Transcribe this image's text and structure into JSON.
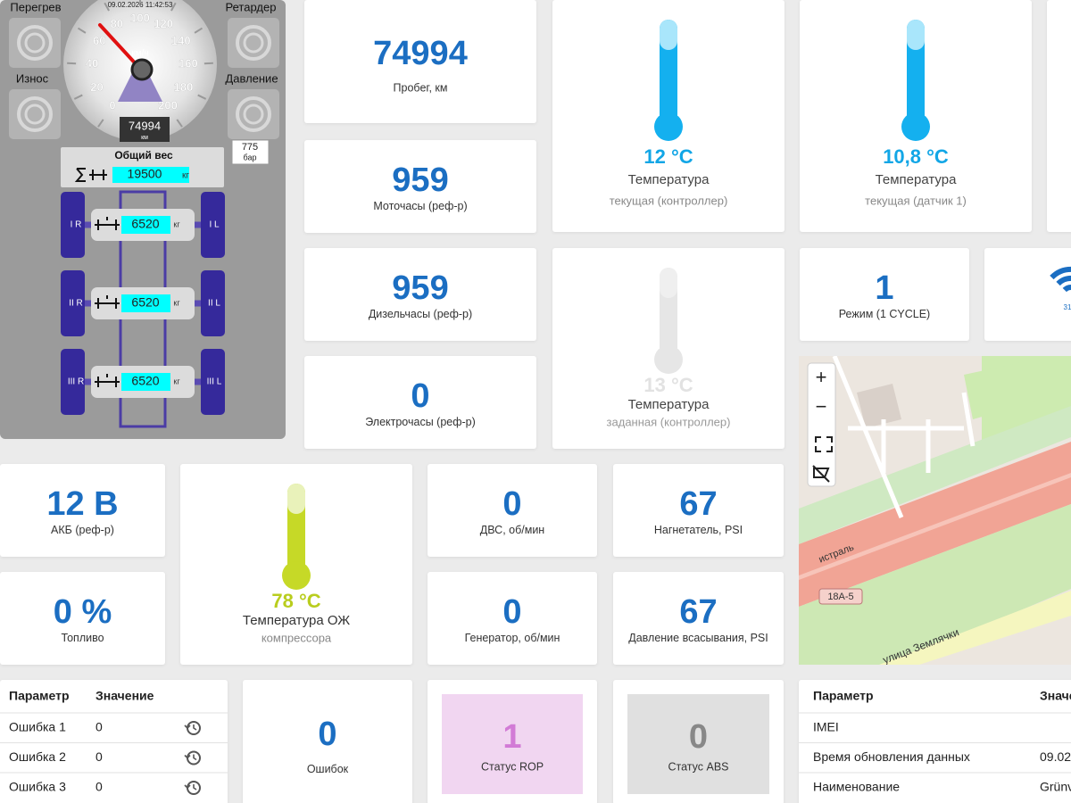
{
  "truck": {
    "warnings": {
      "overheat": "Перегрев",
      "retarder": "Ретардер",
      "wear": "Износ",
      "pressure": "Давление"
    },
    "timestamp": "09.02.2026 11:42:53",
    "speed_ticks": [
      "0",
      "20",
      "40",
      "60",
      "80",
      "100",
      "120",
      "140",
      "160",
      "180",
      "200"
    ],
    "speed_unit": "км/ч",
    "odometer": "74994",
    "odometer_unit": "км",
    "pressure_value": "775",
    "pressure_unit": "бар",
    "total_weight_label": "Общий вес",
    "total_weight": "19500",
    "weight_unit": "кг",
    "axles": [
      {
        "right": "I R",
        "left": "I L",
        "weight": "6520",
        "unit": "кг"
      },
      {
        "right": "II R",
        "left": "II L",
        "weight": "6520",
        "unit": "кг"
      },
      {
        "right": "III R",
        "left": "III L",
        "weight": "6520",
        "unit": "кг"
      }
    ]
  },
  "tiles": {
    "mileage": {
      "value": "74994",
      "label": "Пробег, км"
    },
    "engine_hours": {
      "value": "959",
      "label": "Моточасы (реф-р)"
    },
    "diesel_hours": {
      "value": "959",
      "label": "Дизельчасы (реф-р)"
    },
    "electric_hours": {
      "value": "0",
      "label": "Электрочасы (реф-р)"
    },
    "temp_current": {
      "value": "12 °C",
      "label": "Температура",
      "sublabel": "текущая (контроллер)"
    },
    "temp_sensor": {
      "value": "10,8 °C",
      "label": "Температура",
      "sublabel": "текущая (датчик 1)"
    },
    "temp_set": {
      "value": "13 °C",
      "label": "Температура",
      "sublabel": "заданная (контроллер)"
    },
    "mode": {
      "value": "1",
      "label": "Режим (1 CYCLE)"
    },
    "signal": {
      "value": "31"
    },
    "battery": {
      "value": "12 В",
      "label": "АКБ (реф-р)"
    },
    "fuel": {
      "value": "0 %",
      "label": "Топливо"
    },
    "coolant": {
      "value": "78 °C",
      "label": "Температура ОЖ",
      "sublabel": "компрессора"
    },
    "engine_rpm": {
      "value": "0",
      "label": "ДВС, об/мин"
    },
    "booster": {
      "value": "67",
      "label": "Нагнетатель, PSI"
    },
    "generator": {
      "value": "0",
      "label": "Генератор, об/мин"
    },
    "suction": {
      "value": "67",
      "label": "Давление всасывания, PSI"
    },
    "errors": {
      "value": "0",
      "label": "Ошибок"
    },
    "rop": {
      "value": "1",
      "label": "Статус ROP"
    },
    "abs": {
      "value": "0",
      "label": "Статус ABS"
    }
  },
  "error_table": {
    "header": [
      "Параметр",
      "Значение"
    ],
    "rows": [
      [
        "Ошибка 1",
        "0"
      ],
      [
        "Ошибка 2",
        "0"
      ],
      [
        "Ошибка 3",
        "0"
      ]
    ]
  },
  "info_table": {
    "header": [
      "Параметр",
      "Значе"
    ],
    "rows": [
      [
        "IMEI"
      ],
      [
        "Время обновления данных",
        "09.02"
      ],
      [
        "Наименование",
        "Grünv"
      ]
    ]
  },
  "map": {
    "controls": [
      "+",
      "−"
    ],
    "labels": [
      "истраль",
      "18А-5",
      "улица Землячки"
    ]
  }
}
